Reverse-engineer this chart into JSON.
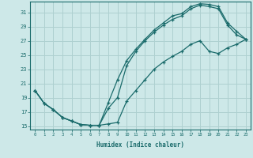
{
  "xlabel": "Humidex (Indice chaleur)",
  "ylabel": "",
  "bg_color": "#cde8e8",
  "line_color": "#1a6b6b",
  "grid_color": "#aed0d0",
  "xlim": [
    -0.5,
    23.5
  ],
  "ylim": [
    14.5,
    32.5
  ],
  "yticks": [
    15,
    17,
    19,
    21,
    23,
    25,
    27,
    29,
    31
  ],
  "xticks": [
    0,
    1,
    2,
    3,
    4,
    5,
    6,
    7,
    8,
    9,
    10,
    11,
    12,
    13,
    14,
    15,
    16,
    17,
    18,
    19,
    20,
    21,
    22,
    23
  ],
  "line1_x": [
    0,
    1,
    2,
    3,
    4,
    5,
    6,
    7,
    8,
    9,
    10,
    11,
    12,
    13,
    14,
    15,
    16,
    17,
    18,
    19,
    20,
    21,
    22,
    23
  ],
  "line1_y": [
    20.0,
    18.2,
    17.3,
    16.2,
    15.7,
    15.2,
    15.1,
    15.1,
    18.3,
    21.5,
    24.2,
    25.8,
    27.2,
    28.5,
    29.5,
    30.5,
    30.8,
    31.8,
    32.2,
    32.1,
    31.8,
    29.5,
    28.3,
    27.2
  ],
  "line2_x": [
    0,
    1,
    2,
    3,
    4,
    5,
    6,
    7,
    8,
    9,
    10,
    11,
    12,
    13,
    14,
    15,
    16,
    17,
    18,
    19,
    20,
    21,
    22,
    23
  ],
  "line2_y": [
    20.0,
    18.2,
    17.3,
    16.2,
    15.7,
    15.2,
    15.1,
    15.1,
    17.5,
    19.0,
    23.5,
    25.5,
    27.0,
    28.2,
    29.2,
    30.0,
    30.5,
    31.5,
    32.0,
    31.8,
    31.5,
    29.2,
    27.8,
    27.2
  ],
  "line3_x": [
    0,
    1,
    2,
    3,
    4,
    5,
    6,
    7,
    8,
    9,
    10,
    11,
    12,
    13,
    14,
    15,
    16,
    17,
    18,
    19,
    20,
    21,
    22,
    23
  ],
  "line3_y": [
    20.0,
    18.2,
    17.3,
    16.2,
    15.7,
    15.2,
    15.1,
    15.1,
    15.3,
    15.5,
    18.5,
    20.0,
    21.5,
    23.0,
    24.0,
    24.8,
    25.5,
    26.5,
    27.0,
    25.5,
    25.2,
    26.0,
    26.5,
    27.2
  ]
}
